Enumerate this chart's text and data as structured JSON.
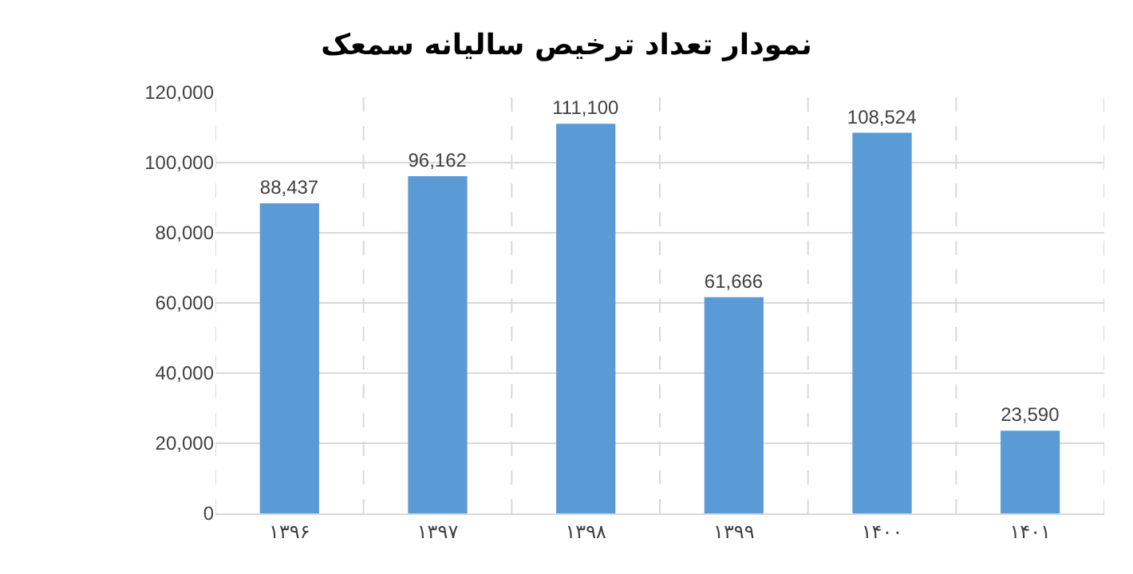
{
  "chart_data": {
    "type": "bar",
    "title": "نمودار تعداد ترخیص سالیانه سمعک",
    "categories": [
      "۱۳۹۶",
      "۱۳۹۷",
      "۱۳۹۸",
      "۱۳۹۹",
      "۱۴۰۰",
      "۱۴۰۱"
    ],
    "values": [
      88437,
      96162,
      111100,
      61666,
      108524,
      23590
    ],
    "color": "#5b9bd5",
    "value_labels": [
      "88,437",
      "96,162",
      "111,100",
      "61,666",
      "108,524",
      "23,590"
    ],
    "ylim": [
      0,
      120000
    ],
    "yticks": [
      0,
      {
        "value": 20000,
        "label": "20,000"
      },
      {
        "value": 40000,
        "label": "40,000"
      },
      {
        "value": 60000,
        "label": "60,000"
      },
      {
        "value": 80000,
        "label": "80,000"
      },
      {
        "value": 100000,
        "label": "100,000"
      },
      {
        "value": 120000,
        "label": "120,000"
      }
    ],
    "grid": true
  }
}
